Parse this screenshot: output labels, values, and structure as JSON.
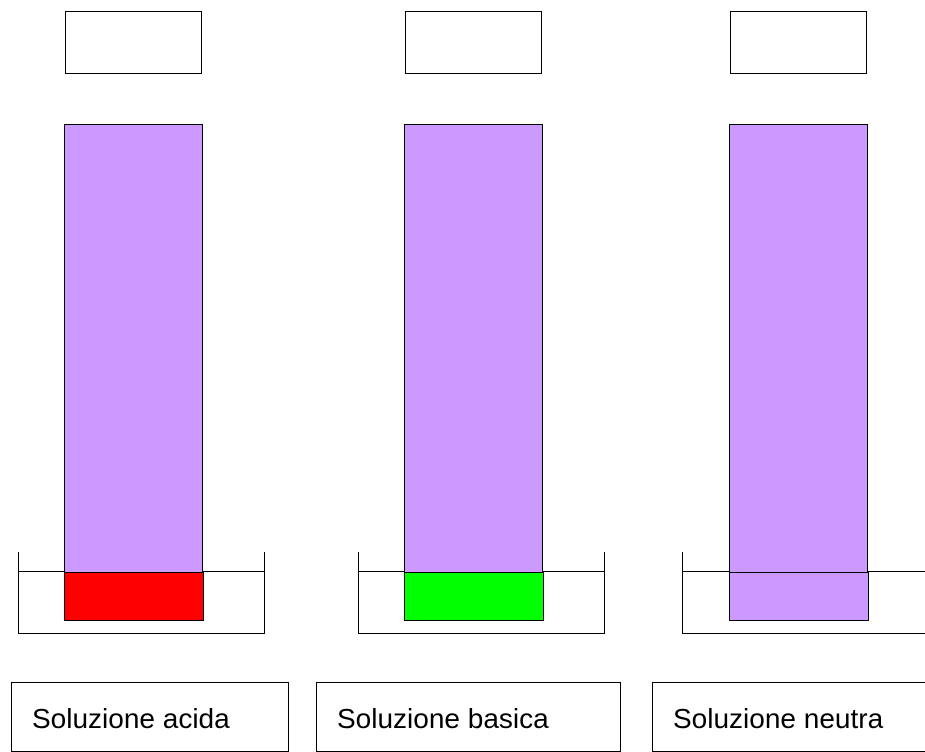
{
  "strip_color": "#cc99ff",
  "panels": [
    {
      "label": "Soluzione acida",
      "tip_color": "#ff0000"
    },
    {
      "label": "Soluzione basica",
      "tip_color": "#00ff00"
    },
    {
      "label": "Soluzione neutra",
      "tip_color": "#cc99ff"
    }
  ]
}
